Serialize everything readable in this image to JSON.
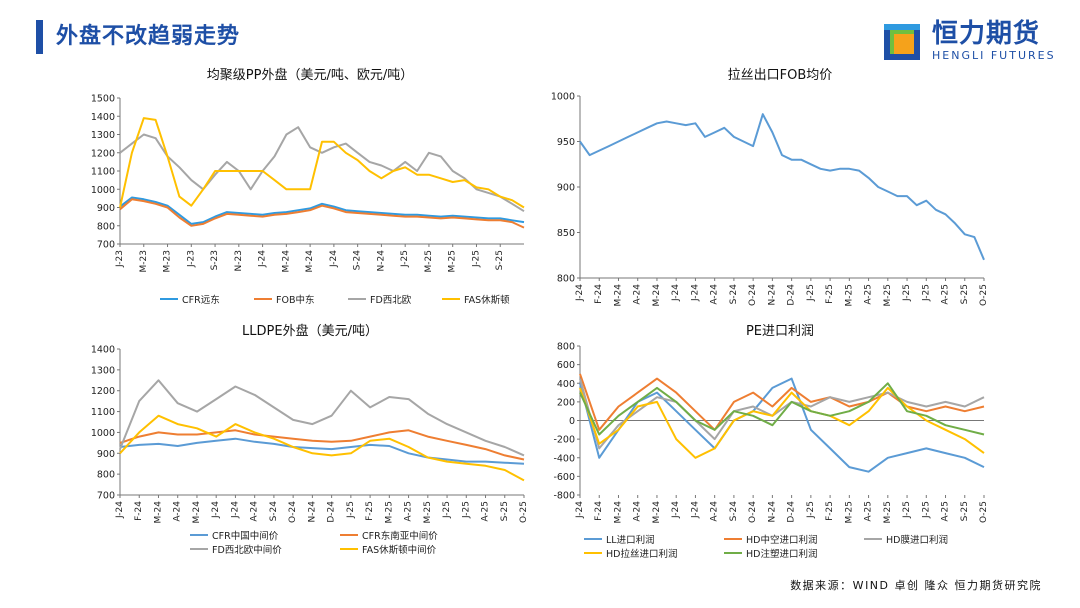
{
  "page": {
    "title": "外盘不改趋弱走势",
    "source": "数据来源：WIND  卓创  隆众  恒力期货研究院"
  },
  "logo": {
    "text": "恒力期货",
    "sub": "HENGLI FUTURES"
  },
  "colors": {
    "brand": "#1e4fa6",
    "logo_orange": "#f5a21b",
    "logo_green": "#6fbf3f"
  },
  "chart_data": [
    {
      "type": "line",
      "title": "均聚级PP外盘（美元/吨、欧元/吨）",
      "xlabel": "",
      "ylabel": "",
      "ylim": [
        700,
        1500
      ],
      "yticks": [
        700,
        800,
        900,
        1000,
        1100,
        1200,
        1300,
        1400,
        1500
      ],
      "x_range": [
        0,
        34
      ],
      "x_tick_labels": [
        "J-23",
        "M-23",
        "M-23",
        "J-23",
        "S-23",
        "N-23",
        "J-24",
        "M-24",
        "M-24",
        "J-24",
        "S-24",
        "N-24",
        "J-25",
        "M-25",
        "M-25",
        "J-25",
        "S-25"
      ],
      "x_tick_positions": [
        0,
        2,
        4,
        6,
        8,
        10,
        12,
        14,
        16,
        18,
        20,
        22,
        24,
        26,
        28,
        30,
        32
      ],
      "grid": false,
      "legend_position": "bottom",
      "series": [
        {
          "name": "CFR远东",
          "color": "#2f9ae0",
          "x": [
            0,
            1,
            2,
            3,
            4,
            5,
            6,
            7,
            8,
            9,
            10,
            11,
            12,
            13,
            14,
            15,
            16,
            17,
            18,
            19,
            20,
            21,
            22,
            23,
            24,
            25,
            26,
            27,
            28,
            29,
            30,
            31,
            32,
            33,
            34
          ],
          "y": [
            905,
            955,
            945,
            930,
            910,
            860,
            810,
            820,
            850,
            875,
            870,
            865,
            860,
            870,
            875,
            885,
            895,
            920,
            905,
            885,
            880,
            875,
            870,
            865,
            860,
            860,
            855,
            850,
            855,
            850,
            845,
            840,
            840,
            830,
            820
          ]
        },
        {
          "name": "FOB中东",
          "color": "#ee7e32",
          "x": [
            0,
            1,
            2,
            3,
            4,
            5,
            6,
            7,
            8,
            9,
            10,
            11,
            12,
            13,
            14,
            15,
            16,
            17,
            18,
            19,
            20,
            21,
            22,
            23,
            24,
            25,
            26,
            27,
            28,
            29,
            30,
            31,
            32,
            33,
            34
          ],
          "y": [
            890,
            945,
            935,
            920,
            900,
            845,
            800,
            810,
            840,
            865,
            860,
            855,
            850,
            860,
            865,
            875,
            885,
            910,
            895,
            875,
            870,
            865,
            860,
            855,
            850,
            850,
            845,
            840,
            845,
            840,
            835,
            830,
            830,
            820,
            790
          ]
        },
        {
          "name": "FD西北欧",
          "color": "#a6a6a6",
          "x": [
            0,
            1,
            2,
            3,
            4,
            5,
            6,
            7,
            8,
            9,
            10,
            11,
            12,
            13,
            14,
            15,
            16,
            17,
            18,
            19,
            20,
            21,
            22,
            23,
            24,
            25,
            26,
            27,
            28,
            29,
            30,
            31,
            32,
            33,
            34
          ],
          "y": [
            1200,
            1250,
            1300,
            1280,
            1180,
            1120,
            1050,
            1000,
            1080,
            1150,
            1100,
            1000,
            1100,
            1180,
            1300,
            1340,
            1230,
            1200,
            1230,
            1250,
            1200,
            1150,
            1130,
            1100,
            1150,
            1100,
            1200,
            1180,
            1100,
            1060,
            1000,
            980,
            960,
            920,
            880
          ]
        },
        {
          "name": "FAS休斯顿",
          "color": "#ffc000",
          "x": [
            0,
            1,
            2,
            3,
            4,
            5,
            6,
            7,
            8,
            9,
            10,
            11,
            12,
            13,
            14,
            15,
            16,
            17,
            18,
            19,
            20,
            21,
            22,
            23,
            24,
            25,
            26,
            27,
            28,
            29,
            30,
            31,
            32,
            33,
            34
          ],
          "y": [
            900,
            1200,
            1390,
            1380,
            1180,
            960,
            910,
            1000,
            1100,
            1100,
            1100,
            1100,
            1100,
            1050,
            1000,
            1000,
            1000,
            1260,
            1260,
            1200,
            1160,
            1100,
            1060,
            1100,
            1120,
            1080,
            1080,
            1060,
            1040,
            1050,
            1010,
            1000,
            960,
            940,
            900
          ]
        }
      ]
    },
    {
      "type": "line",
      "title": "拉丝出口FOB均价",
      "xlabel": "",
      "ylabel": "",
      "ylim": [
        800,
        1000
      ],
      "yticks": [
        800,
        850,
        900,
        950,
        1000
      ],
      "x_range": [
        0,
        21
      ],
      "x_tick_labels": [
        "J-24",
        "F-24",
        "M-24",
        "A-24",
        "M-24",
        "J-24",
        "J-24",
        "A-24",
        "S-24",
        "O-24",
        "N-24",
        "D-24",
        "J-25",
        "F-25",
        "M-25",
        "A-25",
        "M-25",
        "J-25",
        "J-25",
        "A-25",
        "S-25",
        "O-25"
      ],
      "x_tick_positions": [
        0,
        1,
        2,
        3,
        4,
        5,
        6,
        7,
        8,
        9,
        10,
        11,
        12,
        13,
        14,
        15,
        16,
        17,
        18,
        19,
        20,
        21
      ],
      "grid": false,
      "series": [
        {
          "name": "拉丝出口FOB均价",
          "color": "#5b9bd5",
          "x": [
            0,
            0.5,
            1,
            1.5,
            2,
            2.5,
            3,
            3.5,
            4,
            4.5,
            5,
            5.5,
            6,
            6.5,
            7,
            7.5,
            8,
            8.5,
            9,
            9.5,
            10,
            10.5,
            11,
            11.5,
            12,
            12.5,
            13,
            13.5,
            14,
            14.5,
            15,
            15.5,
            16,
            16.5,
            17,
            17.5,
            18,
            18.5,
            19,
            19.5,
            20,
            20.5,
            21
          ],
          "y": [
            950,
            935,
            940,
            945,
            950,
            955,
            960,
            965,
            970,
            972,
            970,
            968,
            970,
            955,
            960,
            965,
            955,
            950,
            945,
            980,
            960,
            935,
            930,
            930,
            925,
            920,
            918,
            920,
            920,
            918,
            910,
            900,
            895,
            890,
            890,
            880,
            885,
            875,
            870,
            860,
            848,
            845,
            820
          ]
        }
      ]
    },
    {
      "type": "line",
      "title": "LLDPE外盘（美元/吨）",
      "xlabel": "",
      "ylabel": "",
      "ylim": [
        700,
        1400
      ],
      "yticks": [
        700,
        800,
        900,
        1000,
        1100,
        1200,
        1300,
        1400
      ],
      "x_range": [
        0,
        21
      ],
      "x_tick_labels": [
        "J-24",
        "F-24",
        "M-24",
        "A-24",
        "M-24",
        "J-24",
        "J-24",
        "A-24",
        "S-24",
        "O-24",
        "N-24",
        "D-24",
        "J-25",
        "F-25",
        "M-25",
        "A-25",
        "M-25",
        "J-25",
        "J-25",
        "A-25",
        "S-25",
        "O-25"
      ],
      "x_tick_positions": [
        0,
        1,
        2,
        3,
        4,
        5,
        6,
        7,
        8,
        9,
        10,
        11,
        12,
        13,
        14,
        15,
        16,
        17,
        18,
        19,
        20,
        21
      ],
      "grid": false,
      "legend_position": "bottom",
      "series": [
        {
          "name": "CFR中国中间价",
          "color": "#5b9bd5",
          "x": [
            0,
            1,
            2,
            3,
            4,
            5,
            6,
            7,
            8,
            9,
            10,
            11,
            12,
            13,
            14,
            15,
            16,
            17,
            18,
            19,
            20,
            21
          ],
          "y": [
            930,
            940,
            945,
            935,
            950,
            960,
            970,
            955,
            945,
            930,
            925,
            920,
            930,
            940,
            935,
            900,
            880,
            870,
            860,
            860,
            855,
            850
          ]
        },
        {
          "name": "CFR东南亚中间价",
          "color": "#ee7e32",
          "x": [
            0,
            1,
            2,
            3,
            4,
            5,
            6,
            7,
            8,
            9,
            10,
            11,
            12,
            13,
            14,
            15,
            16,
            17,
            18,
            19,
            20,
            21
          ],
          "y": [
            950,
            980,
            1000,
            990,
            990,
            1000,
            1010,
            990,
            980,
            970,
            960,
            955,
            960,
            980,
            1000,
            1010,
            980,
            960,
            940,
            920,
            890,
            870
          ]
        },
        {
          "name": "FD西北欧中间价",
          "color": "#a6a6a6",
          "x": [
            0,
            1,
            2,
            3,
            4,
            5,
            6,
            7,
            8,
            9,
            10,
            11,
            12,
            13,
            14,
            15,
            16,
            17,
            18,
            19,
            20,
            21
          ],
          "y": [
            920,
            1150,
            1250,
            1140,
            1100,
            1160,
            1220,
            1180,
            1120,
            1060,
            1040,
            1080,
            1200,
            1120,
            1170,
            1160,
            1090,
            1040,
            1000,
            960,
            930,
            890
          ]
        },
        {
          "name": "FAS休斯顿中间价",
          "color": "#ffc000",
          "x": [
            0,
            1,
            2,
            3,
            4,
            5,
            6,
            7,
            8,
            9,
            10,
            11,
            12,
            13,
            14,
            15,
            16,
            17,
            18,
            19,
            20,
            21
          ],
          "y": [
            900,
            1000,
            1080,
            1040,
            1020,
            980,
            1040,
            1000,
            970,
            930,
            900,
            890,
            900,
            960,
            970,
            930,
            880,
            860,
            850,
            840,
            820,
            770
          ]
        }
      ]
    },
    {
      "type": "line",
      "title": "PE进口利润",
      "xlabel": "",
      "ylabel": "",
      "ylim": [
        -800,
        800
      ],
      "yticks": [
        -800,
        -600,
        -400,
        -200,
        0,
        200,
        400,
        600,
        800
      ],
      "x_range": [
        0,
        21
      ],
      "x_tick_labels": [
        "J-24",
        "F-24",
        "M-24",
        "A-24",
        "M-24",
        "J-24",
        "J-24",
        "A-24",
        "S-24",
        "O-24",
        "N-24",
        "D-24",
        "J-25",
        "F-25",
        "M-25",
        "A-25",
        "M-25",
        "J-25",
        "J-25",
        "A-25",
        "S-25",
        "O-25"
      ],
      "x_tick_positions": [
        0,
        1,
        2,
        3,
        4,
        5,
        6,
        7,
        8,
        9,
        10,
        11,
        12,
        13,
        14,
        15,
        16,
        17,
        18,
        19,
        20,
        21
      ],
      "grid": false,
      "legend_position": "bottom",
      "series": [
        {
          "name": "LL进口利润",
          "color": "#5b9bd5",
          "x": [
            0,
            1,
            2,
            3,
            4,
            5,
            6,
            7,
            8,
            9,
            10,
            11,
            12,
            13,
            14,
            15,
            16,
            17,
            18,
            19,
            20,
            21
          ],
          "y": [
            400,
            -400,
            -100,
            200,
            300,
            100,
            -100,
            -300,
            0,
            100,
            350,
            450,
            -100,
            -300,
            -500,
            -550,
            -400,
            -350,
            -300,
            -350,
            -400,
            -500
          ]
        },
        {
          "name": "HD中空进口利润",
          "color": "#ee7e32",
          "x": [
            0,
            1,
            2,
            3,
            4,
            5,
            6,
            7,
            8,
            9,
            10,
            11,
            12,
            13,
            14,
            15,
            16,
            17,
            18,
            19,
            20,
            21
          ],
          "y": [
            500,
            -100,
            150,
            300,
            450,
            300,
            100,
            -100,
            200,
            300,
            150,
            350,
            200,
            250,
            150,
            200,
            300,
            150,
            100,
            150,
            100,
            150
          ]
        },
        {
          "name": "HD膜进口利润",
          "color": "#a6a6a6",
          "x": [
            0,
            1,
            2,
            3,
            4,
            5,
            6,
            7,
            8,
            9,
            10,
            11,
            12,
            13,
            14,
            15,
            16,
            17,
            18,
            19,
            20,
            21
          ],
          "y": [
            450,
            -300,
            -50,
            100,
            250,
            200,
            0,
            -200,
            100,
            150,
            50,
            200,
            150,
            250,
            200,
            250,
            300,
            200,
            150,
            200,
            150,
            250
          ]
        },
        {
          "name": "HD拉丝进口利润",
          "color": "#ffc000",
          "x": [
            0,
            1,
            2,
            3,
            4,
            5,
            6,
            7,
            8,
            9,
            10,
            11,
            12,
            13,
            14,
            15,
            16,
            17,
            18,
            19,
            20,
            21
          ],
          "y": [
            350,
            -250,
            -100,
            150,
            200,
            -200,
            -400,
            -300,
            0,
            100,
            50,
            300,
            100,
            50,
            -50,
            100,
            350,
            150,
            0,
            -100,
            -200,
            -350
          ]
        },
        {
          "name": "HD注塑进口利润",
          "color": "#70ad47",
          "x": [
            0,
            1,
            2,
            3,
            4,
            5,
            6,
            7,
            8,
            9,
            10,
            11,
            12,
            13,
            14,
            15,
            16,
            17,
            18,
            19,
            20,
            21
          ],
          "y": [
            300,
            -150,
            50,
            200,
            350,
            200,
            0,
            -100,
            100,
            50,
            -50,
            200,
            100,
            50,
            100,
            200,
            400,
            100,
            50,
            -50,
            -100,
            -150
          ]
        }
      ]
    }
  ]
}
